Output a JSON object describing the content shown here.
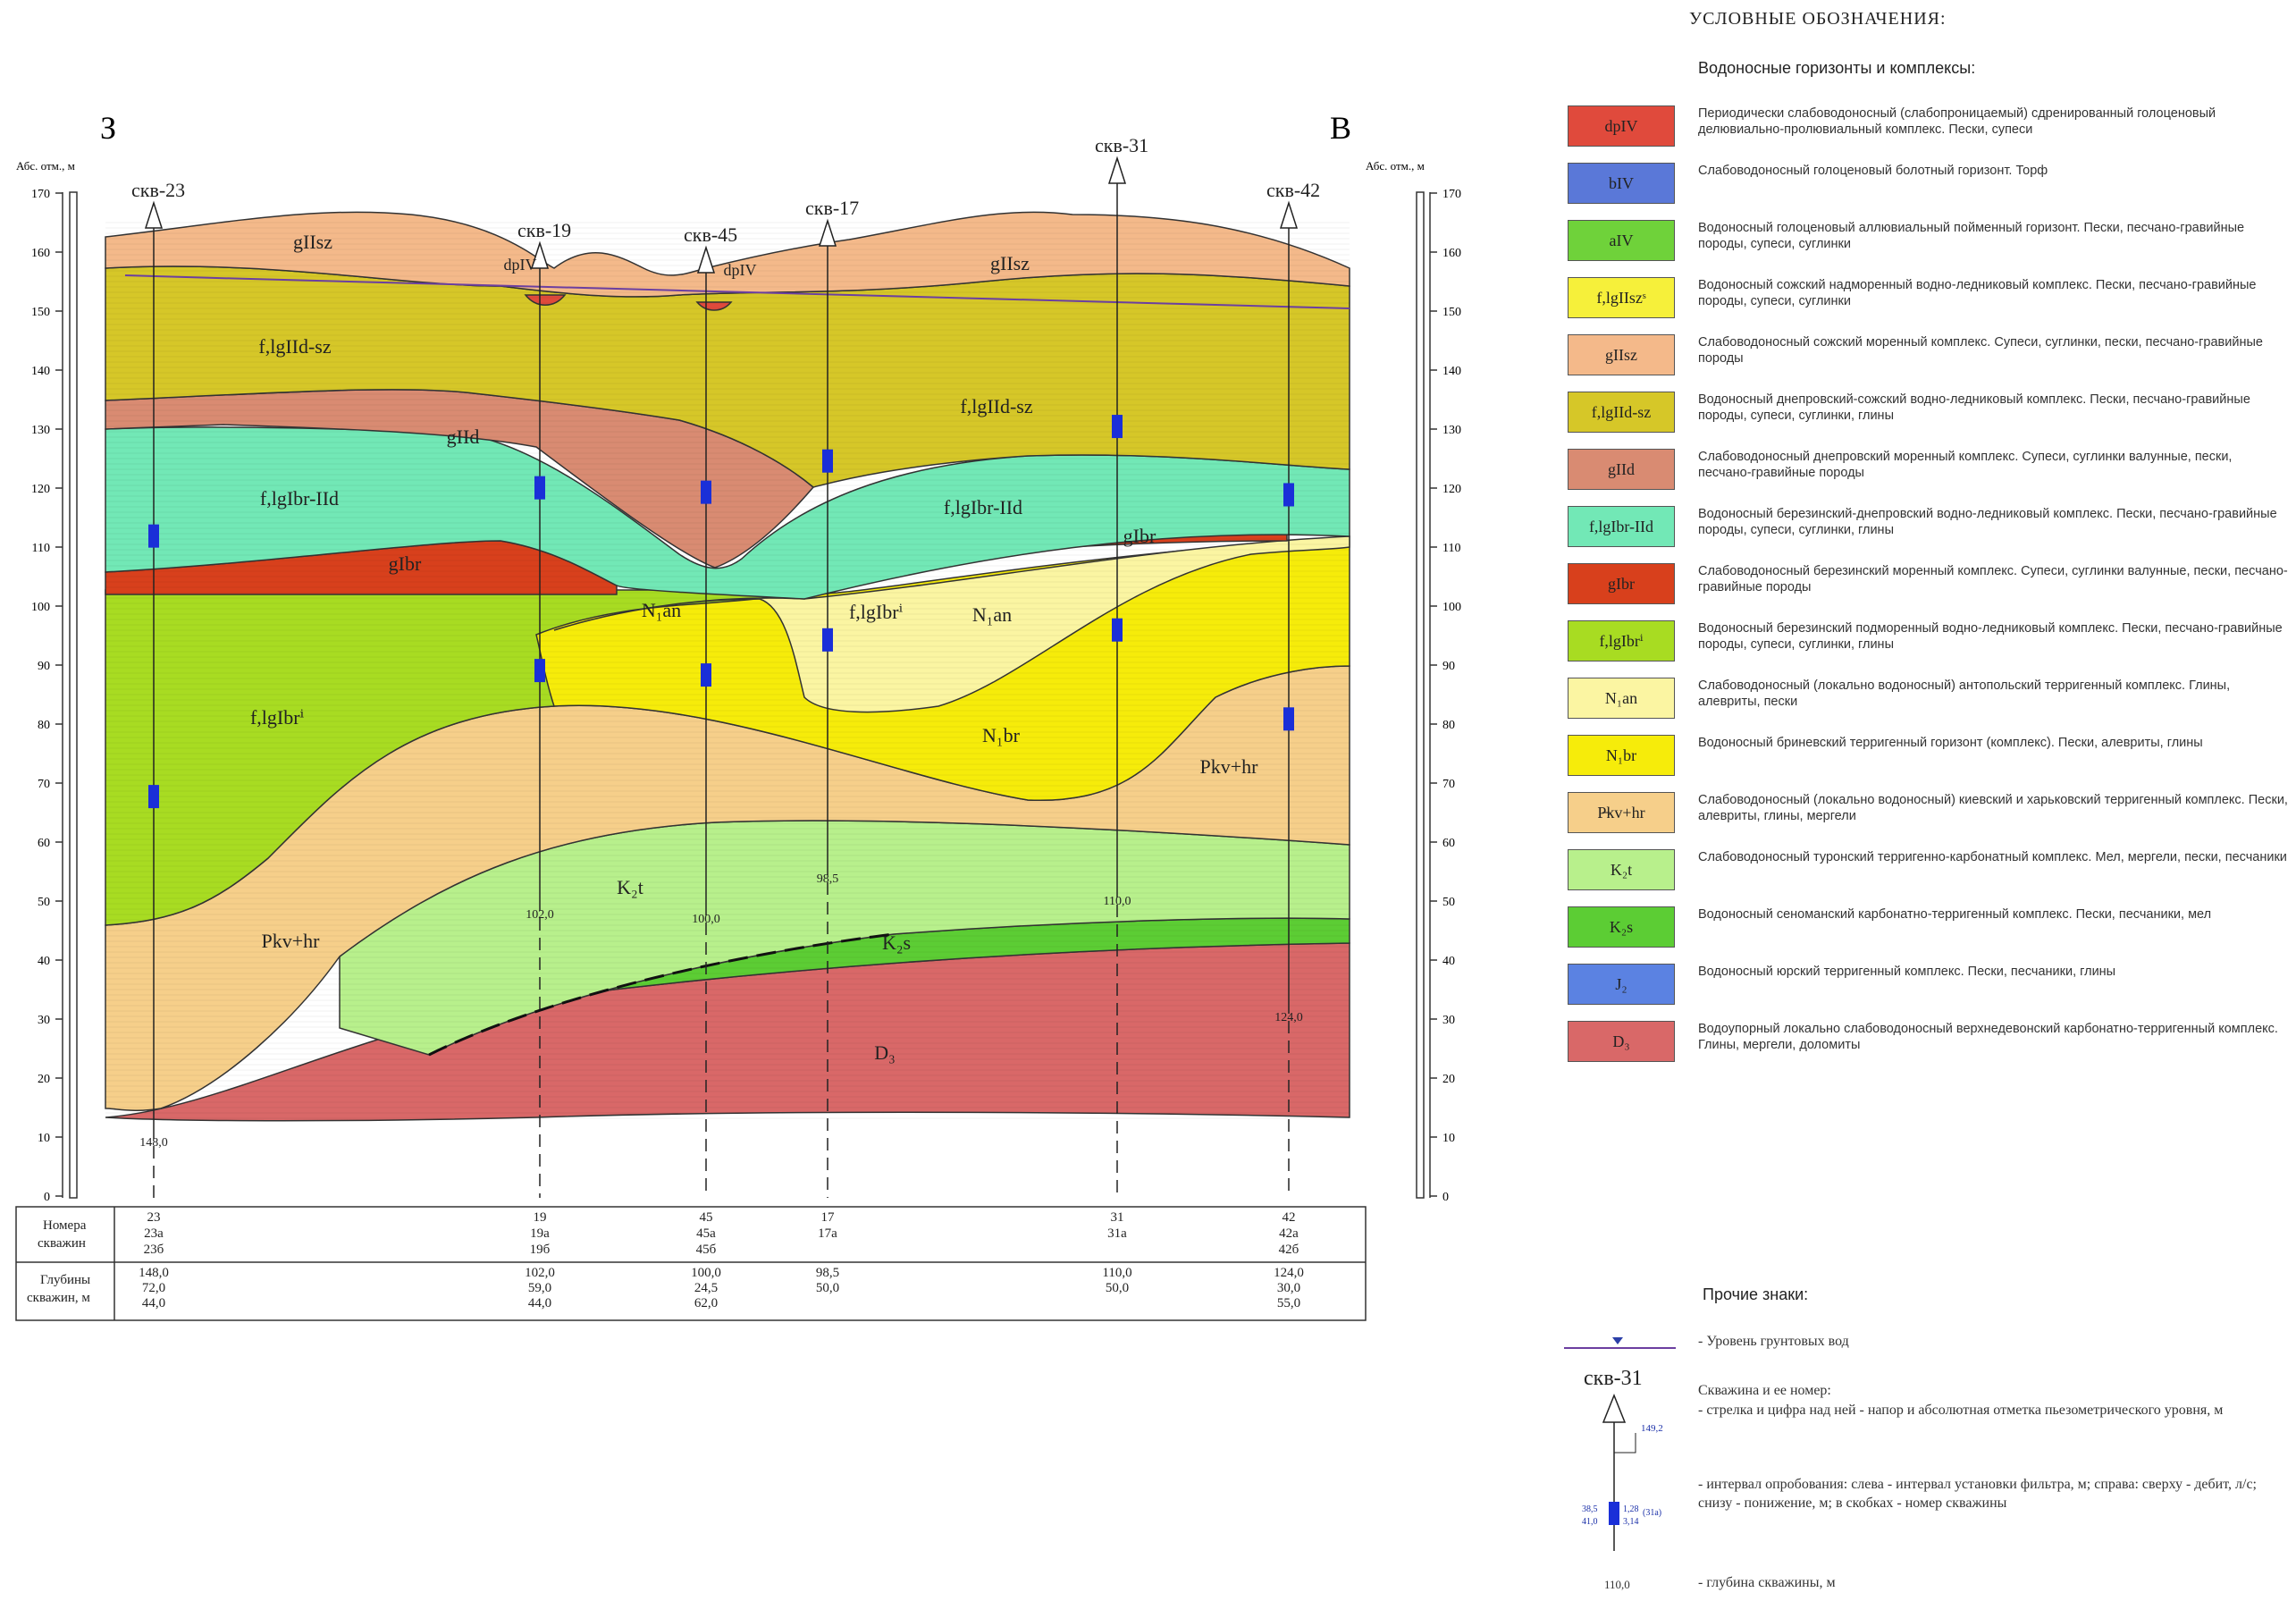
{
  "section": {
    "left_letter": "З",
    "right_letter": "В",
    "axis_title_left": "Абс. отм., м",
    "axis_title_right": "Абс. отм., м",
    "y_ticks": [
      0,
      10,
      20,
      30,
      40,
      50,
      60,
      70,
      80,
      90,
      100,
      110,
      120,
      130,
      140,
      150,
      160,
      170
    ],
    "wells": [
      {
        "label": "скв-23",
        "bottom": "148,0"
      },
      {
        "label": "скв-19",
        "bottom": "102,0"
      },
      {
        "label": "скв-45",
        "bottom": "100,0"
      },
      {
        "label": "скв-17",
        "bottom": "98,5"
      },
      {
        "label": "скв-31",
        "bottom": "110,0"
      },
      {
        "label": "скв-42",
        "bottom": "124,0"
      }
    ],
    "layer_labels": [
      {
        "text": "gIIsz"
      },
      {
        "text": "gIIsz"
      },
      {
        "text": "f,lgIId-sz"
      },
      {
        "text": "f,lgIId-sz"
      },
      {
        "text": "gIId"
      },
      {
        "text": "f,lgIbr-IId"
      },
      {
        "text": "f,lgIbr-IId"
      },
      {
        "text": "gIbr"
      },
      {
        "text": "gIbr"
      },
      {
        "text": "f,lgIbrⁱ"
      },
      {
        "text": "f,lgIbrⁱ"
      },
      {
        "text": "N₁an"
      },
      {
        "text": "N₁an"
      },
      {
        "text": "N₁br"
      },
      {
        "text": "Pkv+hr"
      },
      {
        "text": "Pkv+hr"
      },
      {
        "text": "K₂t"
      },
      {
        "text": "K₂s"
      },
      {
        "text": "D₃"
      },
      {
        "text": "dpIV"
      },
      {
        "text": "dpIV"
      }
    ],
    "table": {
      "row1_label_1": "Номера",
      "row1_label_2": "скважин",
      "row2_label_1": "Глубины",
      "row2_label_2": "скважин, м",
      "columns": [
        {
          "nums": [
            "23",
            "23а",
            "23б"
          ],
          "depths": [
            "148,0",
            "72,0",
            "44,0"
          ]
        },
        {
          "nums": [
            "19",
            "19а",
            "19б"
          ],
          "depths": [
            "102,0",
            "59,0",
            "44,0"
          ]
        },
        {
          "nums": [
            "45",
            "45а",
            "45б"
          ],
          "depths": [
            "100,0",
            "24,5",
            "62,0"
          ]
        },
        {
          "nums": [
            "17",
            "17а",
            ""
          ],
          "depths": [
            "98,5",
            "50,0",
            ""
          ]
        },
        {
          "nums": [
            "31",
            "31а",
            ""
          ],
          "depths": [
            "110,0",
            "50,0",
            ""
          ]
        },
        {
          "nums": [
            "42",
            "42а",
            "42б"
          ],
          "depths": [
            "124,0",
            "30,0",
            "55,0"
          ]
        }
      ]
    }
  },
  "legend": {
    "title": "УСЛОВНЫЕ ОБОЗНАЧЕНИЯ:",
    "subtitle": "Водоносные горизонты и комплексы:",
    "items": [
      {
        "code": "dpIV",
        "color": "#e04a3c",
        "text": "Периодически слабоводоносный (слабопроницаемый) сдренированный голоценовый делювиально-пролювиальный комплекс. Пески, супеси"
      },
      {
        "code": "bIV",
        "color": "#5a78d8",
        "text": "Слабоводоносный голоценовый болотный горизонт. Торф"
      },
      {
        "code": "aIV",
        "color": "#6fd23a",
        "text": "Водоносный голоценовый аллювиальный пойменный горизонт. Пески, песчано-гравийные породы, супеси, суглинки"
      },
      {
        "code": "f,lgIIszˢ",
        "color": "#f6f03a",
        "text": "Водоносный сожский надморенный водно-ледниковый комплекс. Пески, песчано-гравийные породы, супеси, суглинки"
      },
      {
        "code": "gIIsz",
        "color": "#f4b98a",
        "text": "Слабоводоносный сожский моренный комплекс. Супеси, суглинки, пески, песчано-гравийные породы"
      },
      {
        "code": "f,lgIId-sz",
        "color": "#d6c728",
        "text": "Водоносный днепровский-сожский водно-ледниковый комплекс. Пески, песчано-гравийные породы, супеси, суглинки, глины"
      },
      {
        "code": "gIId",
        "color": "#d98b72",
        "text": "Слабоводоносный днепровский моренный комплекс. Супеси, суглинки валунные, пески, песчано-гравийные породы"
      },
      {
        "code": "f,lgIbr-IId",
        "color": "#72e8b6",
        "text": "Водоносный березинский-днепровский водно-ледниковый комплекс. Пески, песчано-гравийные породы, супеси, суглинки, глины"
      },
      {
        "code": "gIbr",
        "color": "#d8401c",
        "text": "Слабоводоносный березинский моренный комплекс. Супеси, суглинки валунные, пески, песчано-гравийные породы"
      },
      {
        "code": "f,lgIbrⁱ",
        "color": "#a8dc22",
        "text": "Водоносный березинский подморенный водно-ледниковый комплекс. Пески, песчано-гравийные породы, супеси, суглинки, глины"
      },
      {
        "code": "N₁an",
        "color": "#fbf5a2",
        "text": "Слабоводоносный (локально водоносный) антопольский терригенный комплекс. Глины, алевриты, пески"
      },
      {
        "code": "N₁br",
        "color": "#f6ec0a",
        "text": "Водоносный бриневский терригенный горизонт (комплекс). Пески, алевриты, глины"
      },
      {
        "code": "P̶kv+hr",
        "color": "#f6cf8a",
        "text": "Слабоводоносный (локально водоносный) киевский и харьковский терригенный комплекс. Пески, алевриты, глины, мергели"
      },
      {
        "code": "K₂t",
        "color": "#b8f08c",
        "text": "Слабоводоносный туронский терригенно-карбонатный комплекс. Мел, мергели, пески, песчаники"
      },
      {
        "code": "K₂s",
        "color": "#5ccd34",
        "text": "Водоносный сеноманский карбонатно-терригенный комплекс. Пески, песчаники, мел"
      },
      {
        "code": "J₂",
        "color": "#5b82e2",
        "text": "Водоносный юрский терригенный комплекс. Пески, песчаники, глины"
      },
      {
        "code": "D₃",
        "color": "#d96868",
        "text": "Водоупорный локально слабоводоносный верхнедевонский карбонатно-терригенный комплекс. Глины, мергели, доломиты"
      }
    ],
    "other_title": "Прочие знаки:",
    "gw_text": "- Уровень грунтовых вод",
    "well_sample_label": "скв-31",
    "well_sample_head": "149,2",
    "well_text_1": "Скважина и ее номер:",
    "well_text_2": "- стрелка и цифра над ней - напор и абсолютная отметка пьезометрического уровня, м",
    "interval_text": "- интервал опробования: слева - интервал установки фильтра, м; справа: сверху - дебит, л/с; снизу - понижение, м; в скобках - номер скважины",
    "interval_left_top": "38,5",
    "interval_left_bottom": "41,0",
    "interval_right_top": "1,28",
    "interval_right_num": "(31а)",
    "interval_right_bottom": "3,14",
    "depth_sample": "110,0",
    "depth_text": "- глубина скважины, м"
  }
}
